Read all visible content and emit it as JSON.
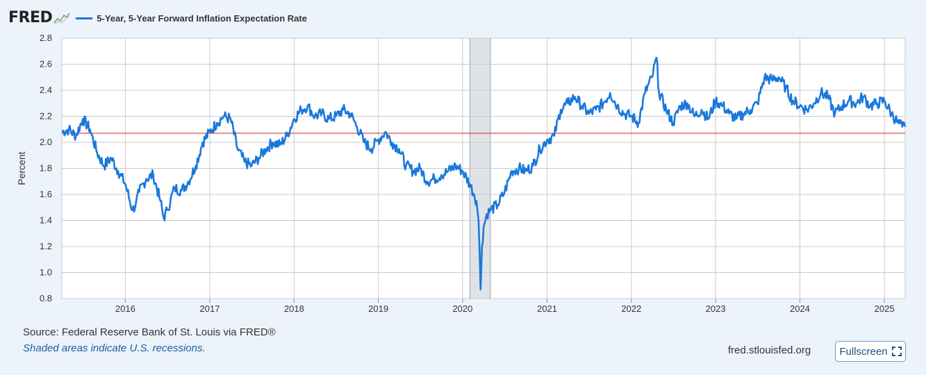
{
  "header": {
    "logo_text": "FRED",
    "logo_icon": "mini-graph-icon",
    "fullscreen_label": "Fullscreen",
    "fullscreen_icon": "expand-corners-icon"
  },
  "footer": {
    "source": "Source: Federal Reserve Bank of St. Louis via FRED®",
    "recession_note": "Shaded areas indicate U.S. recessions.",
    "site": "fred.stlouisfed.org"
  },
  "colors": {
    "series": "#1a78dc",
    "reference_line": "#d32020",
    "recession_shade": "#dfe3e8",
    "grid": "#c9c9c9",
    "plot_background": "#ffffff"
  },
  "chart_data": {
    "type": "line",
    "title": "",
    "xlabel": "",
    "ylabel": "Percent",
    "ylim": [
      0.8,
      2.8
    ],
    "xlim": [
      "2015-04-01",
      "2025-04-01"
    ],
    "yticks": [
      "0.8",
      "1.0",
      "1.2",
      "1.4",
      "1.6",
      "1.8",
      "2.0",
      "2.2",
      "2.4",
      "2.6",
      "2.8"
    ],
    "xticks": [
      "2016",
      "2017",
      "2018",
      "2019",
      "2020",
      "2021",
      "2022",
      "2023",
      "2024",
      "2025"
    ],
    "grid": true,
    "legend_placement": "top-left",
    "reference_line": {
      "y": 2.07
    },
    "recessions": [
      {
        "start": "2020-02-01",
        "end": "2020-04-30"
      }
    ],
    "series": [
      {
        "name": "5-Year, 5-Year Forward Inflation Expectation Rate",
        "x": [
          "2015-04-01",
          "2015-05-01",
          "2015-06-01",
          "2015-07-01",
          "2015-08-01",
          "2015-09-01",
          "2015-10-01",
          "2015-11-01",
          "2015-12-01",
          "2016-01-01",
          "2016-02-01",
          "2016-02-15",
          "2016-03-01",
          "2016-04-01",
          "2016-05-01",
          "2016-06-01",
          "2016-06-15",
          "2016-07-01",
          "2016-08-01",
          "2016-09-01",
          "2016-10-01",
          "2016-11-01",
          "2016-12-01",
          "2017-01-01",
          "2017-02-01",
          "2017-03-01",
          "2017-04-01",
          "2017-05-01",
          "2017-06-01",
          "2017-07-01",
          "2017-08-01",
          "2017-09-01",
          "2017-10-01",
          "2017-11-01",
          "2017-12-01",
          "2018-01-01",
          "2018-02-01",
          "2018-03-01",
          "2018-04-01",
          "2018-05-01",
          "2018-06-01",
          "2018-07-01",
          "2018-08-01",
          "2018-09-01",
          "2018-10-01",
          "2018-11-01",
          "2018-12-01",
          "2019-01-01",
          "2019-02-01",
          "2019-03-01",
          "2019-04-01",
          "2019-05-01",
          "2019-06-01",
          "2019-07-01",
          "2019-08-01",
          "2019-09-01",
          "2019-10-01",
          "2019-11-01",
          "2019-12-01",
          "2020-01-01",
          "2020-02-01",
          "2020-02-20",
          "2020-03-01",
          "2020-03-10",
          "2020-03-19",
          "2020-03-25",
          "2020-04-01",
          "2020-04-15",
          "2020-05-01",
          "2020-06-01",
          "2020-07-01",
          "2020-08-01",
          "2020-09-01",
          "2020-10-01",
          "2020-11-01",
          "2020-12-01",
          "2021-01-01",
          "2021-02-01",
          "2021-03-01",
          "2021-04-01",
          "2021-05-01",
          "2021-06-01",
          "2021-07-01",
          "2021-08-01",
          "2021-09-01",
          "2021-10-01",
          "2021-11-01",
          "2021-12-01",
          "2022-01-01",
          "2022-02-01",
          "2022-03-01",
          "2022-04-01",
          "2022-04-20",
          "2022-05-01",
          "2022-06-01",
          "2022-07-01",
          "2022-08-01",
          "2022-09-01",
          "2022-10-01",
          "2022-11-01",
          "2022-12-01",
          "2023-01-01",
          "2023-02-01",
          "2023-03-01",
          "2023-04-01",
          "2023-05-01",
          "2023-06-01",
          "2023-07-01",
          "2023-08-01",
          "2023-09-01",
          "2023-10-01",
          "2023-11-01",
          "2023-12-01",
          "2024-01-01",
          "2024-02-01",
          "2024-03-01",
          "2024-04-01",
          "2024-05-01",
          "2024-06-01",
          "2024-07-01",
          "2024-08-01",
          "2024-09-01",
          "2024-10-01",
          "2024-11-01",
          "2024-12-01",
          "2025-01-01",
          "2025-02-01",
          "2025-03-01",
          "2025-03-20",
          "2025-04-01"
        ],
        "y": [
          2.08,
          2.1,
          2.05,
          2.18,
          2.1,
          1.92,
          1.82,
          1.88,
          1.78,
          1.68,
          1.48,
          1.52,
          1.62,
          1.72,
          1.75,
          1.55,
          1.42,
          1.48,
          1.65,
          1.63,
          1.7,
          1.82,
          2.0,
          2.08,
          2.15,
          2.2,
          2.18,
          1.95,
          1.85,
          1.82,
          1.88,
          1.95,
          2.0,
          1.98,
          2.05,
          2.18,
          2.25,
          2.28,
          2.2,
          2.22,
          2.18,
          2.2,
          2.25,
          2.22,
          2.12,
          2.0,
          1.95,
          2.02,
          2.08,
          2.0,
          1.95,
          1.82,
          1.78,
          1.8,
          1.7,
          1.72,
          1.75,
          1.78,
          1.82,
          1.78,
          1.68,
          1.6,
          1.55,
          1.4,
          0.87,
          1.2,
          1.35,
          1.45,
          1.48,
          1.52,
          1.62,
          1.78,
          1.8,
          1.78,
          1.82,
          1.95,
          2.02,
          2.05,
          2.25,
          2.3,
          2.35,
          2.28,
          2.22,
          2.25,
          2.3,
          2.38,
          2.28,
          2.22,
          2.2,
          2.15,
          2.38,
          2.5,
          2.65,
          2.38,
          2.25,
          2.15,
          2.28,
          2.3,
          2.2,
          2.25,
          2.18,
          2.32,
          2.28,
          2.22,
          2.18,
          2.22,
          2.25,
          2.3,
          2.5,
          2.48,
          2.5,
          2.42,
          2.32,
          2.28,
          2.25,
          2.3,
          2.38,
          2.35,
          2.22,
          2.28,
          2.32,
          2.3,
          2.35,
          2.28,
          2.3,
          2.32,
          2.22,
          2.15,
          2.12,
          2.12
        ]
      }
    ]
  }
}
